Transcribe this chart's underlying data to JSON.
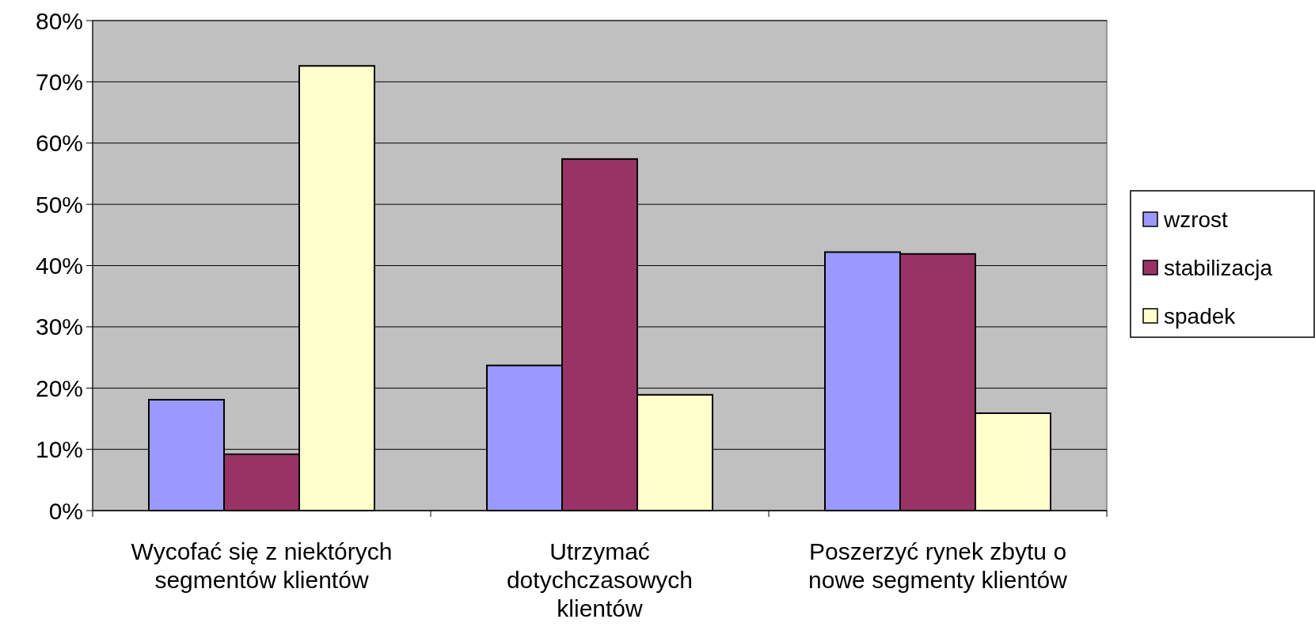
{
  "chart_data": {
    "type": "bar",
    "categories": [
      "Wycofać się z niektórych\nsegmentów klientów",
      "Utrzymać\ndotychczasowych\nklientów",
      "Poszerzyć rynek zbytu o\nnowe segmenty klientów"
    ],
    "series": [
      {
        "name": "wzrost",
        "color": "#9999ff",
        "values": [
          18.1,
          23.7,
          42.2
        ]
      },
      {
        "name": "stabilizacja",
        "color": "#993366",
        "values": [
          9.2,
          57.4,
          41.9
        ]
      },
      {
        "name": "spadek",
        "color": "#ffffcc",
        "values": [
          72.6,
          18.9,
          15.9
        ]
      }
    ],
    "ylim": [
      0,
      80
    ],
    "yticks": [
      {
        "value": 0,
        "label": "0%"
      },
      {
        "value": 10,
        "label": "10%"
      },
      {
        "value": 20,
        "label": "20%"
      },
      {
        "value": 30,
        "label": "30%"
      },
      {
        "value": 40,
        "label": "40%"
      },
      {
        "value": 50,
        "label": "50%"
      },
      {
        "value": 60,
        "label": "60%"
      },
      {
        "value": 70,
        "label": "70%"
      },
      {
        "value": 80,
        "label": "80%"
      }
    ],
    "grid": "y",
    "legend": "right"
  }
}
